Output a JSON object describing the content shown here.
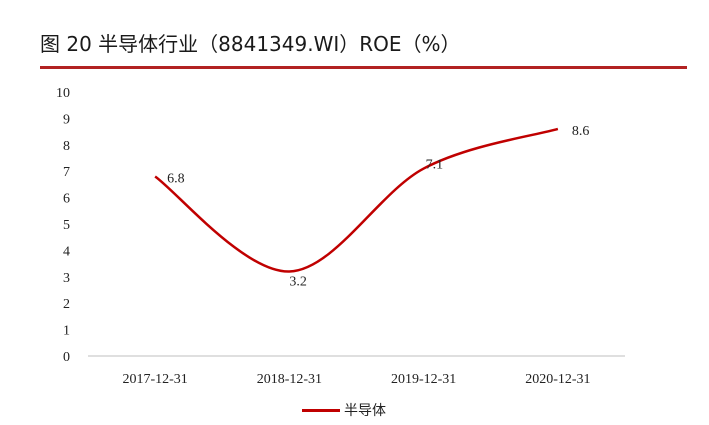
{
  "header": {
    "title": "图 20 半导体行业（8841349.WI）ROE（%）"
  },
  "colors": {
    "accent": "#b22222",
    "series": "#c00000",
    "axis": "#bfbfbf"
  },
  "chart_data": {
    "type": "line",
    "title": "图 20 半导体行业（8841349.WI）ROE（%）",
    "categories": [
      "2017-12-31",
      "2018-12-31",
      "2019-12-31",
      "2020-12-31"
    ],
    "series": [
      {
        "name": "半导体",
        "values": [
          6.8,
          3.2,
          7.1,
          8.6
        ]
      }
    ],
    "data_labels": [
      "6.8",
      "3.2",
      "7.1",
      "8.6"
    ],
    "yticks": [
      "0",
      "1",
      "2",
      "3",
      "4",
      "5",
      "6",
      "7",
      "8",
      "9",
      "10"
    ],
    "ylim": [
      0,
      10
    ],
    "grid": false,
    "smooth": true,
    "legend_position": "bottom"
  }
}
